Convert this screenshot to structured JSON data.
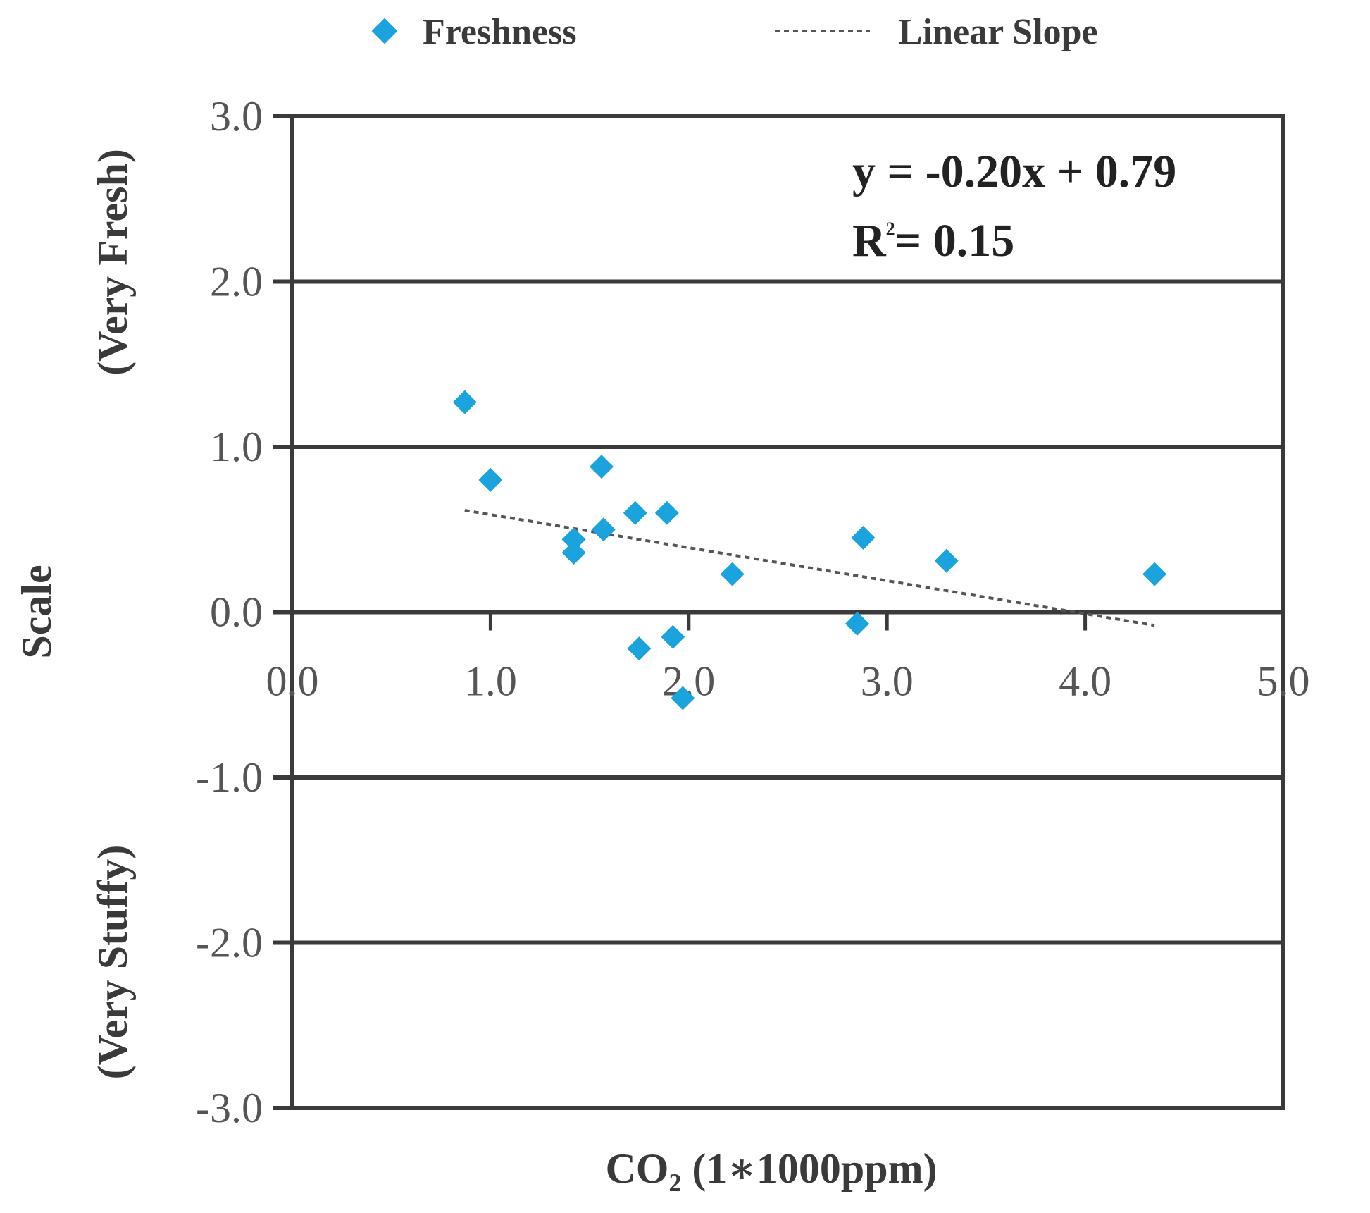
{
  "chart_data": {
    "type": "scatter",
    "xlabel": "CO₂ (1∗1000ppm)",
    "ylabel": "Scale",
    "ylabel_top": "(Very Fresh)",
    "ylabel_bottom": "(Very Stuffy)",
    "xlim": [
      0,
      5
    ],
    "ylim": [
      -3,
      3
    ],
    "x_ticks": [
      "0.0",
      "1.0",
      "2.0",
      "3.0",
      "4.0",
      "5.0"
    ],
    "y_ticks": [
      "3.0",
      "2.0",
      "1.0",
      "0.0",
      "-1.0",
      "-2.0",
      "-3.0"
    ],
    "grid": "horizontal",
    "legend_position": "top",
    "series": [
      {
        "name": "Freshness",
        "color": "#1aa3dd",
        "points": [
          {
            "x": 0.87,
            "y": 1.27
          },
          {
            "x": 1.0,
            "y": 0.8
          },
          {
            "x": 1.42,
            "y": 0.44
          },
          {
            "x": 1.42,
            "y": 0.36
          },
          {
            "x": 1.56,
            "y": 0.88
          },
          {
            "x": 1.57,
            "y": 0.5
          },
          {
            "x": 1.73,
            "y": 0.6
          },
          {
            "x": 1.89,
            "y": 0.6
          },
          {
            "x": 1.75,
            "y": -0.22
          },
          {
            "x": 1.92,
            "y": -0.15
          },
          {
            "x": 1.97,
            "y": -0.52
          },
          {
            "x": 2.22,
            "y": 0.23
          },
          {
            "x": 2.85,
            "y": -0.07
          },
          {
            "x": 2.88,
            "y": 0.45
          },
          {
            "x": 3.3,
            "y": 0.31
          },
          {
            "x": 4.35,
            "y": 0.23
          }
        ]
      }
    ],
    "trendline": {
      "name": "Linear Slope",
      "slope": -0.2,
      "intercept": 0.79,
      "x_range": [
        0.87,
        4.35
      ]
    },
    "annotations": {
      "equation": "y = -0.20x + 0.79",
      "r_squared_prefix": "R",
      "r_squared_exponent": "2",
      "r_squared_value": "= 0.15"
    }
  }
}
